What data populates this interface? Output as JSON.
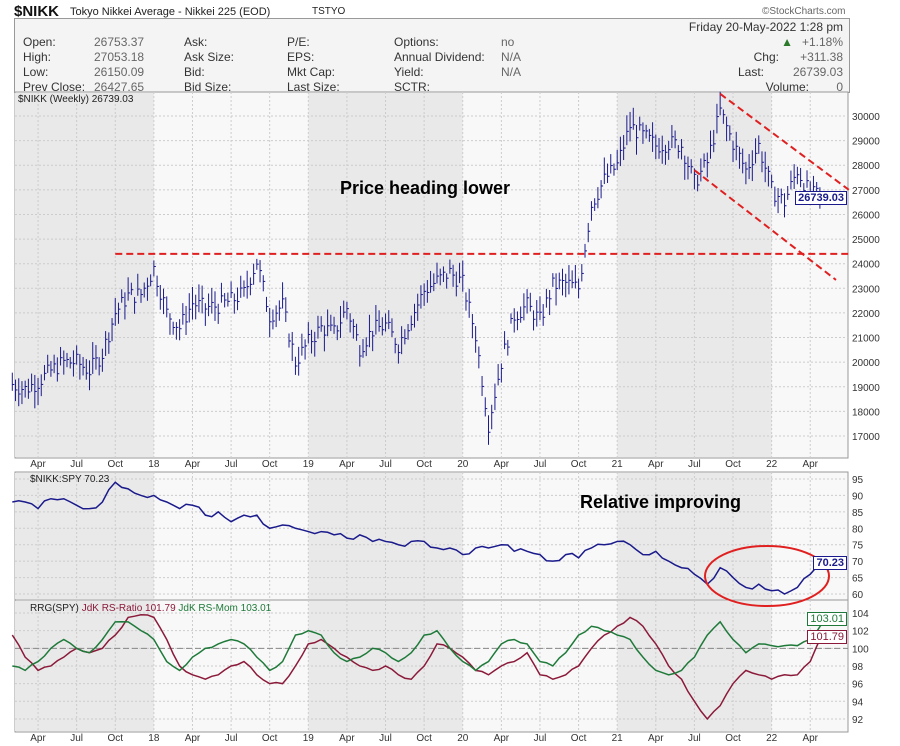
{
  "header": {
    "symbol": "$NIKK",
    "name": "Tokyo Nikkei Average - Nikkei 225 (EOD)",
    "exchange": "TSTYO",
    "brand": "©StockCharts.com",
    "date": "Friday  20-May-2022  1:28 pm",
    "pct": "+1.18%",
    "chg_label": "Chg:",
    "chg": "+311.38",
    "last_label": "Last:",
    "last": "26739.03",
    "volume_label": "Volume:",
    "volume": "0",
    "fields": [
      {
        "l": "Open:",
        "v": "26753.37"
      },
      {
        "l": "High:",
        "v": "27053.18"
      },
      {
        "l": "Low:",
        "v": "26150.09"
      },
      {
        "l": "Prev Close:",
        "v": "26427.65"
      },
      {
        "l": "Ask:",
        "v": ""
      },
      {
        "l": "Ask Size:",
        "v": ""
      },
      {
        "l": "Bid:",
        "v": ""
      },
      {
        "l": "Bid Size:",
        "v": ""
      },
      {
        "l": "P/E:",
        "v": ""
      },
      {
        "l": "EPS:",
        "v": ""
      },
      {
        "l": "Mkt Cap:",
        "v": ""
      },
      {
        "l": "Last Size:",
        "v": ""
      },
      {
        "l": "Options:",
        "v": "no"
      },
      {
        "l": "Annual Dividend:",
        "v": "N/A"
      },
      {
        "l": "Yield:",
        "v": "N/A"
      },
      {
        "l": "SCTR:",
        "v": ""
      }
    ]
  },
  "chart_data": [
    {
      "type": "ohlc",
      "title": "$NIKK (Weekly) 26739.03",
      "last_tag": "26739.03",
      "start": "2017-02",
      "color": "#1a1a8c",
      "yticks": [
        17000,
        18000,
        19000,
        20000,
        21000,
        22000,
        23000,
        24000,
        25000,
        26000,
        27000,
        28000,
        29000,
        30000
      ],
      "monthly_close": [
        19100,
        18900,
        19200,
        19650,
        20000,
        20000,
        19650,
        20350,
        22000,
        22700,
        22750,
        23800,
        22000,
        21400,
        22400,
        22200,
        22300,
        22500,
        22800,
        24100,
        21900,
        22300,
        20000,
        20800,
        21400,
        21200,
        22200,
        20600,
        21300,
        21500,
        20700,
        21800,
        22900,
        23300,
        23650,
        23200,
        21100,
        17500,
        20000,
        21900,
        22300,
        21700,
        23100,
        23200,
        23000,
        26400,
        27400,
        28000,
        29600,
        29200,
        28800,
        28900,
        28800,
        27300,
        28100,
        30200,
        28900,
        27800,
        28800,
        27000,
        26500,
        27800,
        26800,
        26739
      ],
      "annotation": "Price heading lower",
      "lines": [
        {
          "from": [
            "2017-10",
            24400
          ],
          "to": [
            "2022-07",
            24400
          ]
        },
        {
          "from": [
            "2021-09",
            30900
          ],
          "to": [
            "2022-07",
            27000
          ]
        },
        {
          "from": [
            "2021-07",
            27800
          ],
          "to": [
            "2022-06",
            23340
          ]
        }
      ],
      "xticks": [
        "Apr",
        "Jul",
        "Oct",
        "18",
        "Apr",
        "Jul",
        "Oct",
        "19",
        "Apr",
        "Jul",
        "Oct",
        "20",
        "Apr",
        "Jul",
        "Oct",
        "21",
        "Apr",
        "Jul",
        "Oct",
        "22",
        "Apr"
      ]
    },
    {
      "type": "line",
      "title": "$NIKK:SPY 70.23",
      "last_tag": "70.23",
      "color": "#1a1a8c",
      "yticks": [
        60,
        65,
        70,
        75,
        80,
        85,
        90,
        95
      ],
      "values": [
        88,
        88,
        86,
        89,
        89,
        87,
        86,
        88,
        94,
        92,
        90,
        90,
        88,
        86,
        87,
        84,
        85,
        82,
        84,
        84,
        80,
        81,
        80,
        79,
        79,
        78,
        77,
        78,
        76,
        76,
        75,
        76,
        76,
        74,
        74,
        72,
        74,
        74,
        75,
        73,
        73,
        72,
        70,
        72,
        71,
        74,
        75,
        76,
        75,
        72,
        73,
        70,
        68,
        66,
        63,
        68,
        65,
        62,
        63,
        61,
        60,
        62,
        66,
        70.23
      ],
      "annotation": "Relative improving"
    },
    {
      "type": "line",
      "title_a": "RRG(SPY)",
      "title_b": "JdK RS-Ratio 101.79",
      "title_c": "JdK RS-Mom 103.01",
      "yticks": [
        92,
        94,
        96,
        98,
        100,
        102,
        104
      ],
      "series": [
        {
          "name": "JdK RS-Ratio",
          "color": "#8b1a3a",
          "last_tag": "101.79",
          "values": [
            101.5,
            99,
            97.5,
            98,
            99,
            100,
            99.5,
            100,
            101.5,
            103.5,
            103.8,
            103.5,
            101,
            98,
            97,
            96.5,
            97,
            98,
            98.5,
            97,
            96,
            96,
            98,
            100.5,
            101,
            100,
            99,
            98,
            97.5,
            98,
            97,
            96.5,
            98,
            100.5,
            100,
            99,
            97.5,
            97,
            98,
            98.5,
            99.5,
            97,
            96.5,
            97,
            98,
            100,
            101.5,
            102.5,
            103.5,
            102.5,
            100.5,
            98,
            96.5,
            94,
            92,
            93.5,
            96,
            97.5,
            97,
            96.5,
            97,
            97,
            98.5,
            101.79
          ]
        },
        {
          "name": "JdK RS-Mom",
          "color": "#1f7a3a",
          "last_tag": "103.01",
          "values": [
            98,
            97.5,
            98.5,
            100,
            101,
            100,
            99.5,
            101,
            103,
            103,
            102,
            101,
            98.5,
            97.5,
            99,
            100,
            100.5,
            101,
            100.5,
            99,
            97.5,
            98.5,
            101.5,
            102,
            101.5,
            99.5,
            98.5,
            99,
            100,
            99.5,
            98.5,
            99.5,
            101.5,
            102,
            100,
            98.5,
            97.5,
            98.5,
            100.5,
            101,
            100.5,
            98.5,
            98,
            99.5,
            101.5,
            102.5,
            102,
            101.5,
            101,
            99,
            97.5,
            97,
            97.5,
            99,
            101.5,
            103,
            101,
            99.5,
            100.5,
            100.3,
            100.3,
            100.3,
            101,
            103.01
          ]
        }
      ]
    }
  ]
}
